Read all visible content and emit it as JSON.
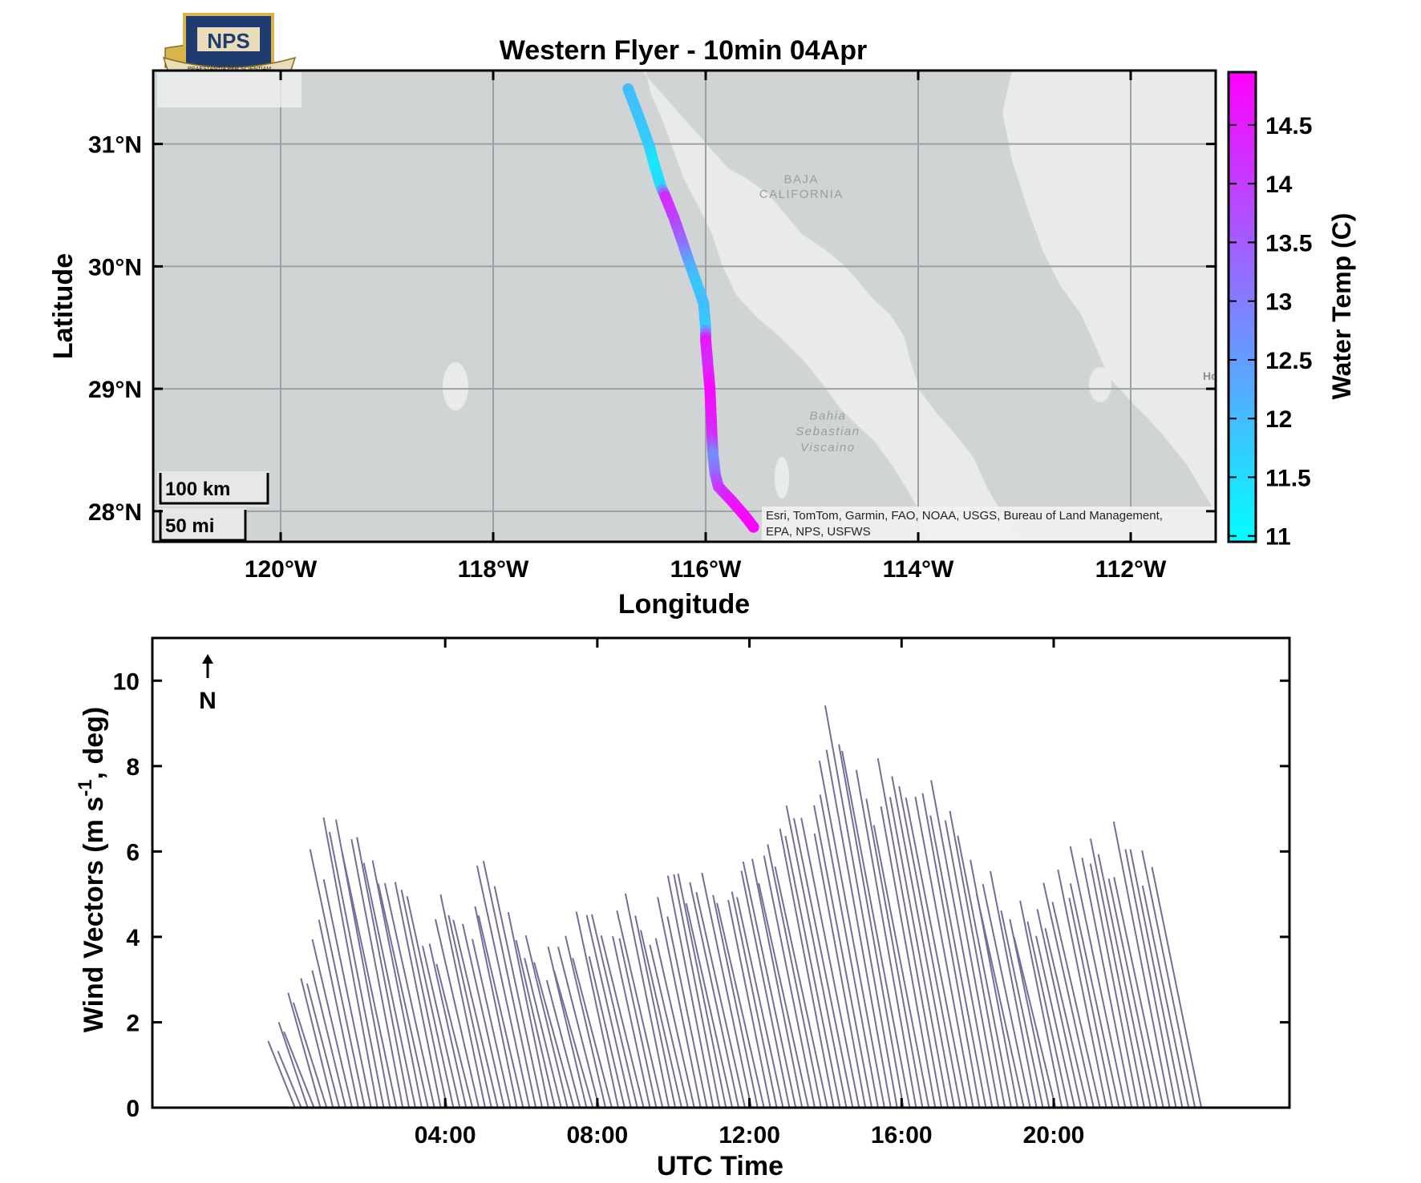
{
  "title": "Western Flyer - 10min 04Apr",
  "logo": {
    "text": "NPS",
    "motto": "PRAESTANTIA PER SCIENTIAM",
    "colors": {
      "shield": "#1f3b70",
      "gold": "#d9b44a"
    }
  },
  "map": {
    "xlabel": "Longitude",
    "ylabel": "Latitude",
    "lon_range": [
      -121.2,
      -111.2
    ],
    "lat_range": [
      27.75,
      31.6
    ],
    "x_ticks": [
      {
        "value": -120,
        "label": "120°W"
      },
      {
        "value": -118,
        "label": "118°W"
      },
      {
        "value": -116,
        "label": "116°W"
      },
      {
        "value": -114,
        "label": "114°W"
      },
      {
        "value": -112,
        "label": "112°W"
      }
    ],
    "y_ticks": [
      {
        "value": 28,
        "label": "28°N"
      },
      {
        "value": 29,
        "label": "29°N"
      },
      {
        "value": 30,
        "label": "30°N"
      },
      {
        "value": 31,
        "label": "31°N"
      }
    ],
    "grid": true,
    "colors": {
      "ocean": "#d1d4d5",
      "land": "#e9eaea",
      "grid": "#9da1a3"
    },
    "place_labels": [
      {
        "text": "BAJA",
        "lon": -115.1,
        "lat": 30.68
      },
      {
        "text": "CALIFORNIA",
        "lon": -115.1,
        "lat": 30.56
      },
      {
        "text": "Bahia",
        "lon": -114.85,
        "lat": 28.75
      },
      {
        "text": "Sebastian",
        "lon": -114.85,
        "lat": 28.62
      },
      {
        "text": "Viscaino",
        "lon": -114.85,
        "lat": 28.49
      }
    ],
    "edge_label": "Hc",
    "scalebar": {
      "km_label": "100 km",
      "mi_label": "50 mi"
    },
    "attribution": [
      "Esri, TomTom, Garmin, FAO, NOAA, USGS, Bureau of Land Management,",
      "EPA, NPS, USFWS"
    ]
  },
  "colorbar": {
    "label": "Water Temp (C)",
    "range": [
      10.95,
      14.95
    ],
    "ticks": [
      "11",
      "11.5",
      "12",
      "12.5",
      "13",
      "13.5",
      "14",
      "14.5"
    ],
    "tick_values": [
      11,
      11.5,
      12,
      12.5,
      13,
      13.5,
      14,
      14.5
    ],
    "color_low": "#00ffff",
    "color_high": "#ff00ff"
  },
  "wind": {
    "ylabel": "Wind Vectors (m s",
    "ylabel_sup": "-1",
    "ylabel_tail": ", deg)",
    "xlabel": "UTC Time",
    "ylim": [
      0,
      11
    ],
    "y_ticks": [
      0,
      2,
      4,
      6,
      8,
      10
    ],
    "x_ticks": [
      {
        "hour": 4,
        "label": "04:00"
      },
      {
        "hour": 8,
        "label": "08:00"
      },
      {
        "hour": 12,
        "label": "12:00"
      },
      {
        "hour": 16,
        "label": "16:00"
      },
      {
        "hour": 20,
        "label": "20:00"
      }
    ],
    "north_label": "N",
    "vector_color": "#6f6f9a"
  },
  "chart_data": [
    {
      "type": "scatter",
      "title": "Western Flyer - 10min 04Apr",
      "xlabel": "Longitude",
      "ylabel": "Latitude",
      "xlim": [
        -121.2,
        -111.2
      ],
      "ylim": [
        27.75,
        31.6
      ],
      "colorbar_label": "Water Temp (C)",
      "color_range": [
        11,
        14.9
      ],
      "track": [
        {
          "lon": -116.73,
          "lat": 31.45,
          "temp": 12.0
        },
        {
          "lon": -116.62,
          "lat": 31.2,
          "temp": 11.9
        },
        {
          "lon": -116.53,
          "lat": 30.98,
          "temp": 11.7
        },
        {
          "lon": -116.48,
          "lat": 30.82,
          "temp": 11.3
        },
        {
          "lon": -116.42,
          "lat": 30.65,
          "temp": 11.6
        },
        {
          "lon": -116.38,
          "lat": 30.57,
          "temp": 14.3
        },
        {
          "lon": -116.3,
          "lat": 30.4,
          "temp": 14.0
        },
        {
          "lon": -116.22,
          "lat": 30.2,
          "temp": 13.3
        },
        {
          "lon": -116.15,
          "lat": 30.02,
          "temp": 12.3
        },
        {
          "lon": -116.08,
          "lat": 29.85,
          "temp": 11.8
        },
        {
          "lon": -116.02,
          "lat": 29.7,
          "temp": 12.0
        },
        {
          "lon": -116.0,
          "lat": 29.5,
          "temp": 11.8
        },
        {
          "lon": -116.0,
          "lat": 29.4,
          "temp": 14.6
        },
        {
          "lon": -115.98,
          "lat": 29.2,
          "temp": 14.3
        },
        {
          "lon": -115.96,
          "lat": 29.0,
          "temp": 14.8
        },
        {
          "lon": -115.95,
          "lat": 28.8,
          "temp": 14.6
        },
        {
          "lon": -115.94,
          "lat": 28.6,
          "temp": 14.2
        },
        {
          "lon": -115.93,
          "lat": 28.45,
          "temp": 12.7
        },
        {
          "lon": -115.91,
          "lat": 28.3,
          "temp": 13.3
        },
        {
          "lon": -115.88,
          "lat": 28.2,
          "temp": 14.0
        },
        {
          "lon": -115.75,
          "lat": 28.08,
          "temp": 14.6
        },
        {
          "lon": -115.62,
          "lat": 27.95,
          "temp": 14.8
        },
        {
          "lon": -115.55,
          "lat": 27.87,
          "temp": 14.9
        }
      ]
    },
    {
      "type": "line",
      "title": "",
      "xlabel": "UTC Time",
      "ylabel": "Wind Vectors (m s-1, deg)",
      "xlim_hours": [
        -3.7,
        26.2
      ],
      "ylim": [
        0,
        11
      ],
      "speed_profile": [
        {
          "hour": -0.8,
          "speed": 1.0
        },
        {
          "hour": 0.0,
          "speed": 1.5
        },
        {
          "hour": 0.8,
          "speed": 2.7
        },
        {
          "hour": 1.4,
          "speed": 3.0
        },
        {
          "hour": 1.8,
          "speed": 5.3
        },
        {
          "hour": 2.4,
          "speed": 6.6
        },
        {
          "hour": 3.2,
          "speed": 6.2
        },
        {
          "hour": 3.8,
          "speed": 5.5
        },
        {
          "hour": 4.6,
          "speed": 3.8
        },
        {
          "hour": 5.2,
          "speed": 4.6
        },
        {
          "hour": 5.8,
          "speed": 4.2
        },
        {
          "hour": 6.3,
          "speed": 5.4
        },
        {
          "hour": 7.0,
          "speed": 3.9
        },
        {
          "hour": 7.6,
          "speed": 3.6
        },
        {
          "hour": 8.4,
          "speed": 4.0
        },
        {
          "hour": 9.0,
          "speed": 4.3
        },
        {
          "hour": 9.8,
          "speed": 4.6
        },
        {
          "hour": 10.6,
          "speed": 4.3
        },
        {
          "hour": 11.2,
          "speed": 5.6
        },
        {
          "hour": 12.0,
          "speed": 5.2
        },
        {
          "hour": 12.8,
          "speed": 5.5
        },
        {
          "hour": 13.4,
          "speed": 5.8
        },
        {
          "hour": 14.0,
          "speed": 5.6
        },
        {
          "hour": 14.6,
          "speed": 6.8
        },
        {
          "hour": 15.2,
          "speed": 6.4
        },
        {
          "hour": 15.6,
          "speed": 8.0
        },
        {
          "hour": 16.0,
          "speed": 9.3
        },
        {
          "hour": 16.6,
          "speed": 6.8
        },
        {
          "hour": 17.4,
          "speed": 8.2
        },
        {
          "hour": 18.0,
          "speed": 6.9
        },
        {
          "hour": 18.6,
          "speed": 7.3
        },
        {
          "hour": 19.2,
          "speed": 5.6
        },
        {
          "hour": 19.8,
          "speed": 4.6
        },
        {
          "hour": 20.6,
          "speed": 4.2
        },
        {
          "hour": 21.4,
          "speed": 5.2
        },
        {
          "hour": 22.0,
          "speed": 6.2
        },
        {
          "hour": 22.6,
          "speed": 5.5
        },
        {
          "hour": 23.2,
          "speed": 6.3
        },
        {
          "hour": 23.6,
          "speed": 5.6
        }
      ]
    }
  ]
}
